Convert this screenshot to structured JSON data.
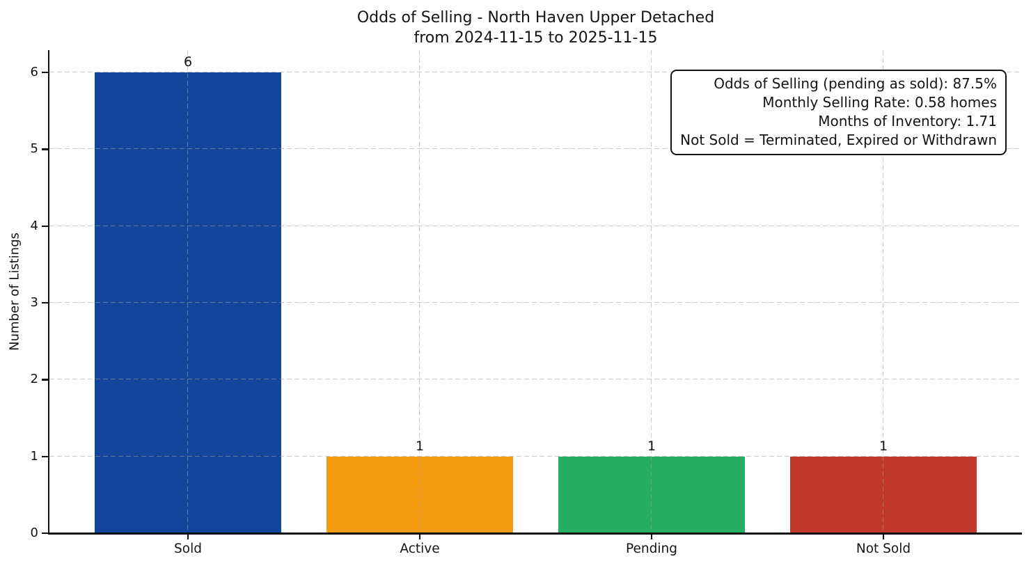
{
  "title": {
    "line1": "Odds of Selling - North Haven Upper Detached",
    "line2": "from 2024-11-15 to 2025-11-15"
  },
  "chart_data": {
    "type": "bar",
    "title": "Odds of Selling - North Haven Upper Detached from 2024-11-15 to 2025-11-15",
    "categories": [
      "Sold",
      "Active",
      "Pending",
      "Not Sold"
    ],
    "values": [
      6,
      1,
      1,
      1
    ],
    "bar_value_labels": [
      "6",
      "1",
      "1",
      "1"
    ],
    "bar_colors": [
      "#13459B",
      "#F39C12",
      "#27AE60",
      "#C0392B"
    ],
    "xlabel": "",
    "ylabel": "Number of Listings",
    "yticks": [
      0,
      1,
      2,
      3,
      4,
      5,
      6
    ],
    "ylim": [
      0,
      6.29
    ],
    "grid": {
      "style": "dashed",
      "axes": "both",
      "color": "#b0b0b0"
    },
    "legend": null
  },
  "annotation": {
    "lines": [
      "Odds of Selling (pending as sold): 87.5%",
      "Monthly Selling Rate: 0.58 homes",
      "Months of Inventory: 1.71",
      "Not Sold = Terminated, Expired or Withdrawn"
    ]
  },
  "style": {
    "spine_color": "#111111",
    "text_color": "#141414",
    "background": "#ffffff"
  }
}
